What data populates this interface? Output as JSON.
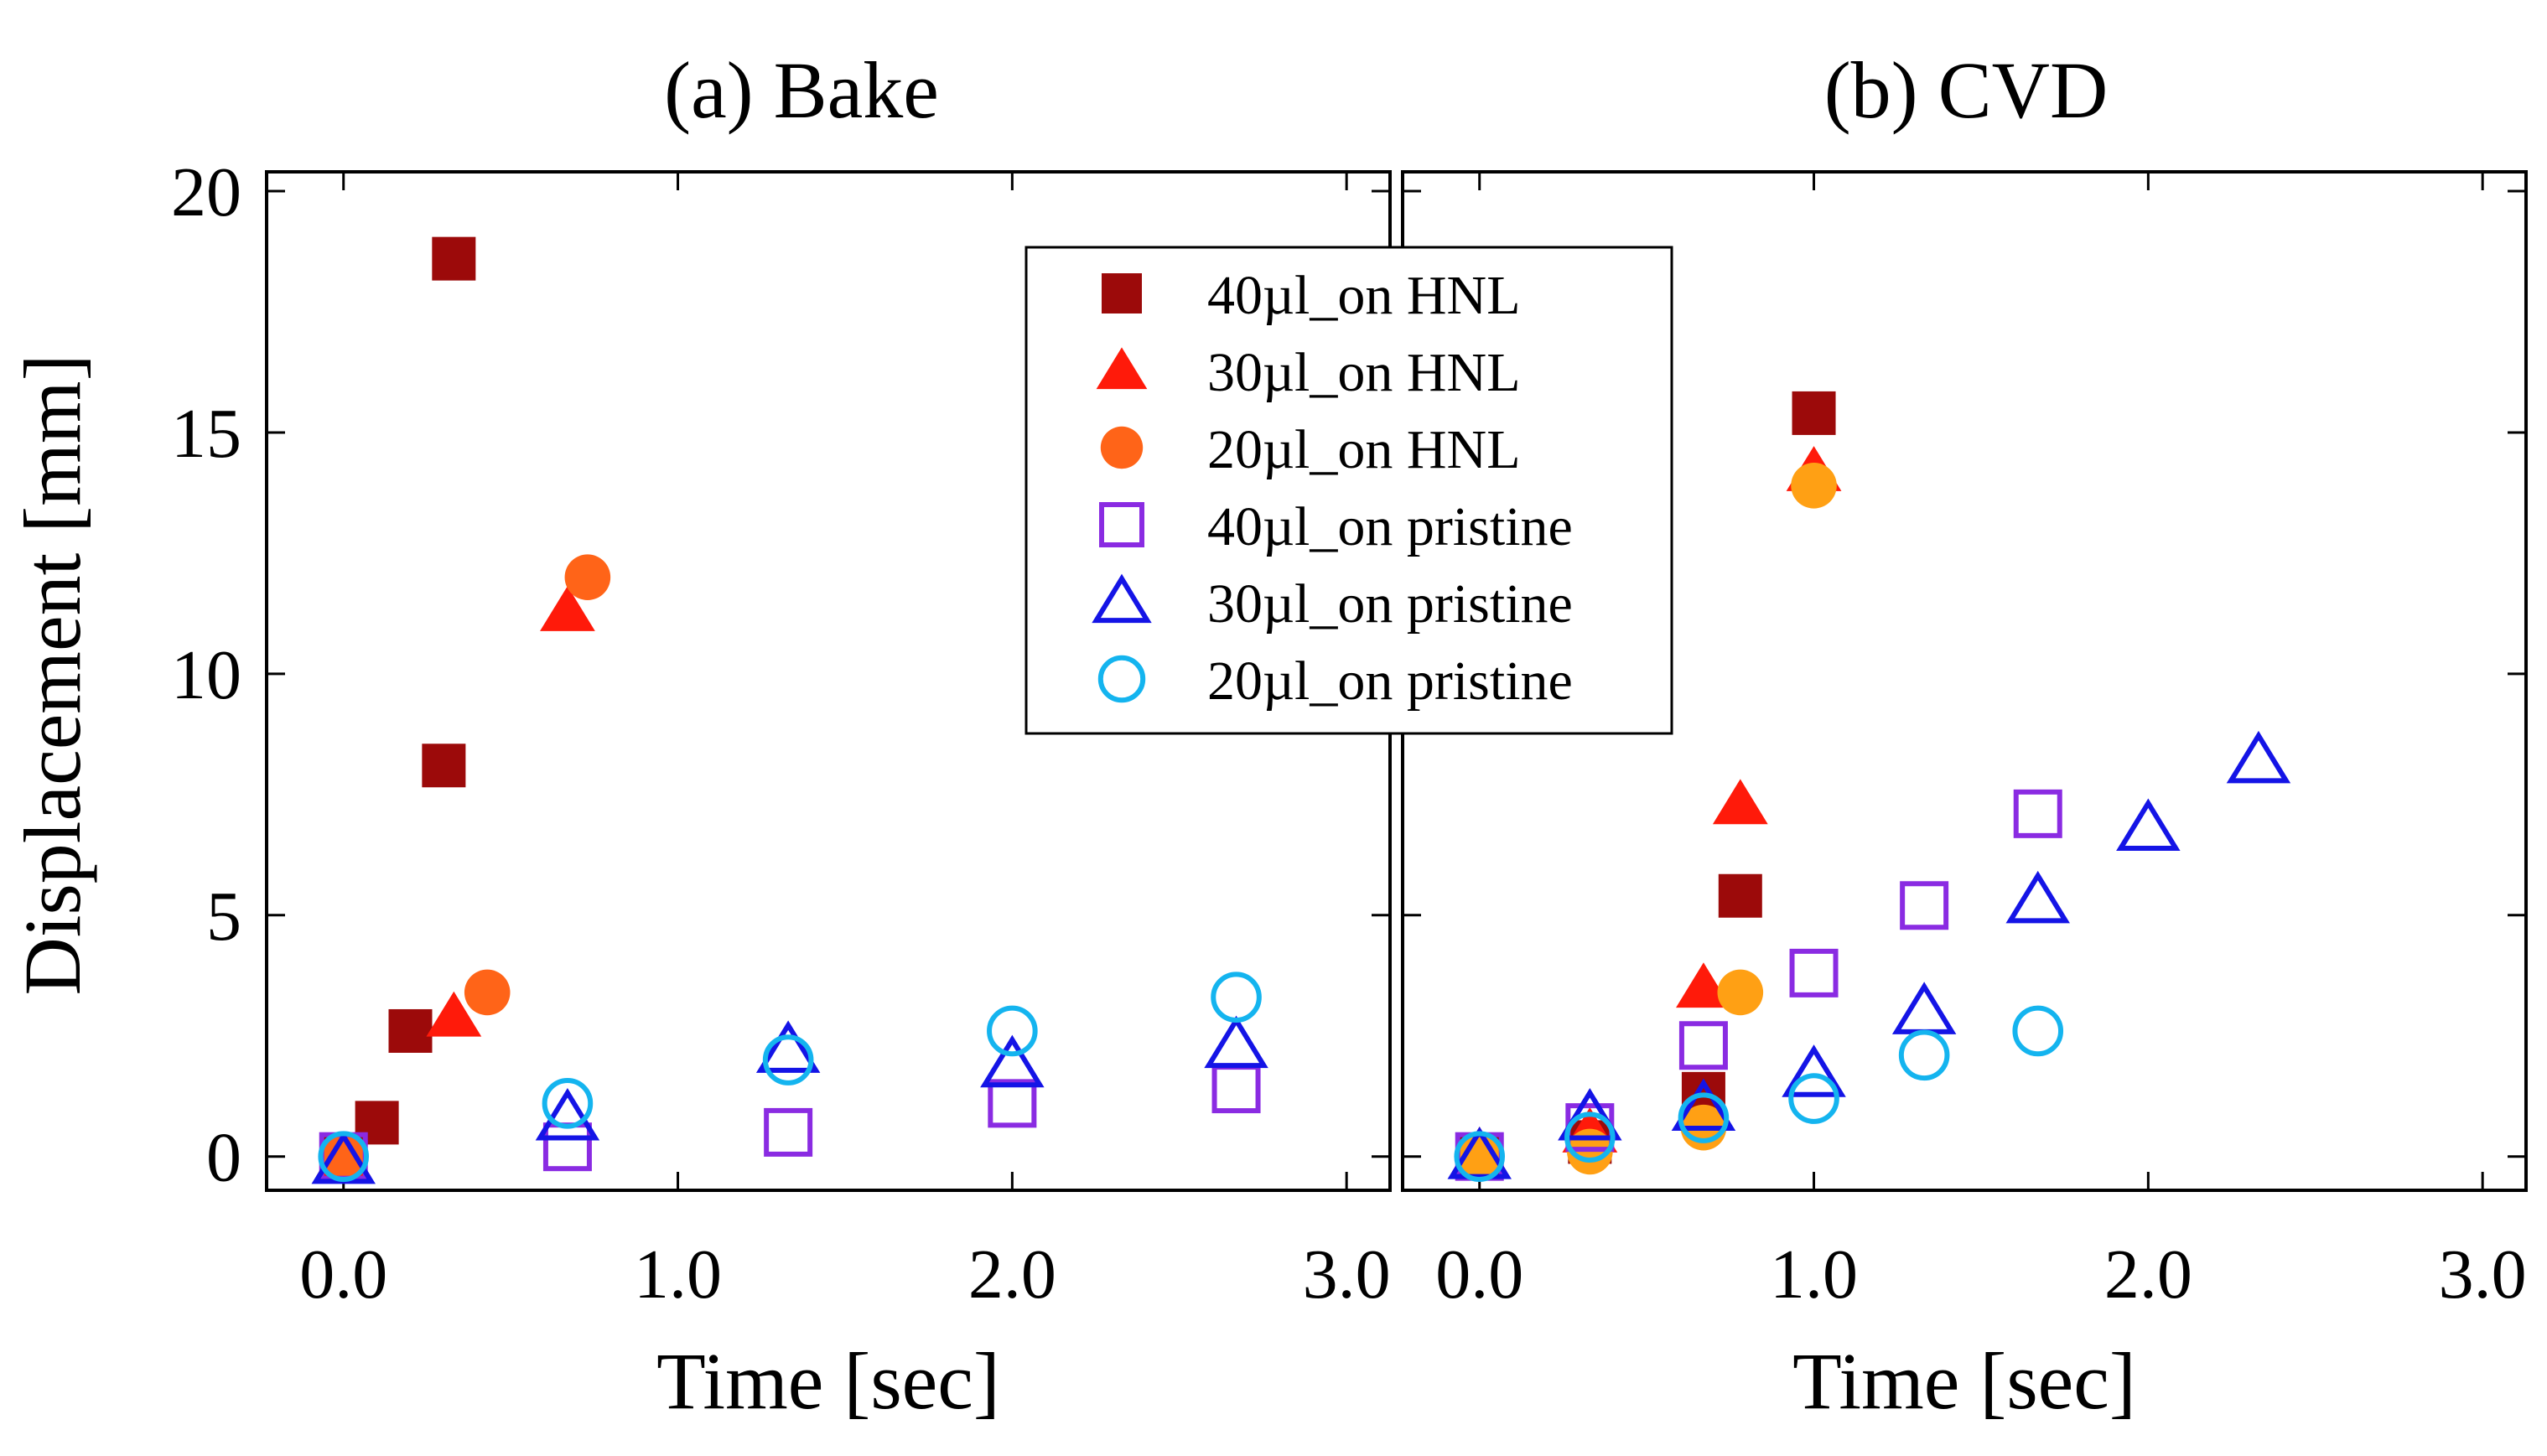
{
  "figure": {
    "ylabel": "Displacement [mm]",
    "xlabel": "Time [sec]"
  },
  "legend": {
    "entries": [
      {
        "label": "40µl_on HNL",
        "marker": "square-filled",
        "color": "#9c0a0a"
      },
      {
        "label": "30µl_on HNL",
        "marker": "triangle-filled",
        "color": "#ff1a0a"
      },
      {
        "label": "20µl_on HNL",
        "marker": "circle-filled",
        "color": "#ff6418"
      },
      {
        "label": "40µl_on pristine",
        "marker": "square-open",
        "color": "#8a2be2"
      },
      {
        "label": "30µl_on pristine",
        "marker": "triangle-open",
        "color": "#1414e6"
      },
      {
        "label": "20µl_on pristine",
        "marker": "circle-open",
        "color": "#14b4ef"
      }
    ]
  },
  "chart_data": [
    {
      "type": "scatter",
      "title": "(a) Bake",
      "xlabel": "Time [sec]",
      "ylabel": "Displacement [mm]",
      "xlim": [
        -0.23,
        3.13
      ],
      "ylim": [
        -0.7,
        20.4
      ],
      "xticks": [
        0,
        1,
        2,
        3
      ],
      "xtick_labels": [
        "0.0",
        "1.0",
        "2.0",
        "3.0"
      ],
      "yticks": [
        0,
        5,
        10,
        15,
        20
      ],
      "ytick_labels": [
        "0",
        "5",
        "10",
        "15",
        "20"
      ],
      "series": [
        {
          "name": "40µl_on HNL",
          "marker": "square-filled",
          "color": "#9c0a0a",
          "points": [
            [
              0.0,
              0.0
            ],
            [
              0.1,
              0.7
            ],
            [
              0.2,
              2.6
            ],
            [
              0.3,
              8.1
            ],
            [
              0.33,
              18.6
            ]
          ]
        },
        {
          "name": "30µl_on HNL",
          "marker": "triangle-filled",
          "color": "#ff1a0a",
          "points": [
            [
              0.0,
              0.0
            ],
            [
              0.33,
              2.9
            ],
            [
              0.67,
              11.3
            ]
          ]
        },
        {
          "name": "20µl_on HNL",
          "marker": "circle-filled",
          "color": "#ff6418",
          "points": [
            [
              0.0,
              0.0
            ],
            [
              0.43,
              3.4
            ],
            [
              0.73,
              12.0
            ]
          ]
        },
        {
          "name": "40µl_on pristine",
          "marker": "square-open",
          "color": "#8a2be2",
          "points": [
            [
              0.0,
              0.0
            ],
            [
              0.67,
              0.2
            ],
            [
              1.33,
              0.5
            ],
            [
              2.0,
              1.1
            ],
            [
              2.67,
              1.4
            ]
          ]
        },
        {
          "name": "30µl_on pristine",
          "marker": "triangle-open",
          "color": "#1414e6",
          "points": [
            [
              0.0,
              -0.1
            ],
            [
              0.67,
              0.8
            ],
            [
              1.33,
              2.2
            ],
            [
              2.0,
              1.9
            ],
            [
              2.67,
              2.3
            ]
          ]
        },
        {
          "name": "20µl_on pristine",
          "marker": "circle-open",
          "color": "#14b4ef",
          "points": [
            [
              0.0,
              0.0
            ],
            [
              0.67,
              1.1
            ],
            [
              1.33,
              2.0
            ],
            [
              2.0,
              2.6
            ],
            [
              2.67,
              3.3
            ]
          ]
        }
      ]
    },
    {
      "type": "scatter",
      "title": "(b) CVD",
      "xlabel": "Time [sec]",
      "ylabel": "",
      "xlim": [
        -0.23,
        3.13
      ],
      "ylim": [
        -0.7,
        20.4
      ],
      "xticks": [
        0,
        1,
        2,
        3
      ],
      "xtick_labels": [
        "0.0",
        "1.0",
        "2.0",
        "3.0"
      ],
      "yticks": [
        0,
        5,
        10,
        15,
        20
      ],
      "ytick_labels": [],
      "series": [
        {
          "name": "40µl_on HNL",
          "marker": "square-filled",
          "color": "#9c0a0a",
          "points": [
            [
              0.0,
              0.0
            ],
            [
              0.33,
              0.3
            ],
            [
              0.67,
              1.3
            ],
            [
              0.78,
              5.4
            ],
            [
              1.0,
              15.4
            ]
          ]
        },
        {
          "name": "30µl_on HNL",
          "marker": "triangle-filled",
          "color": "#ff1a0a",
          "points": [
            [
              0.0,
              0.1
            ],
            [
              0.33,
              0.5
            ],
            [
              0.67,
              3.5
            ],
            [
              0.78,
              7.3
            ],
            [
              1.0,
              14.2
            ]
          ]
        },
        {
          "name": "20µl_on HNL",
          "marker": "circle-filled",
          "color": "#ffa014",
          "points": [
            [
              0.0,
              0.0
            ],
            [
              0.33,
              0.1
            ],
            [
              0.67,
              0.6
            ],
            [
              0.78,
              3.4
            ],
            [
              1.0,
              13.9
            ]
          ]
        },
        {
          "name": "40µl_on pristine",
          "marker": "square-open",
          "color": "#8a2be2",
          "points": [
            [
              0.0,
              0.0
            ],
            [
              0.33,
              0.6
            ],
            [
              0.67,
              2.3
            ],
            [
              1.0,
              3.8
            ],
            [
              1.33,
              5.2
            ],
            [
              1.67,
              7.1
            ]
          ]
        },
        {
          "name": "30µl_on pristine",
          "marker": "triangle-open",
          "color": "#1414e6",
          "points": [
            [
              0.0,
              0.0
            ],
            [
              0.33,
              0.8
            ],
            [
              0.67,
              1.0
            ],
            [
              1.0,
              1.7
            ],
            [
              1.33,
              3.0
            ],
            [
              1.67,
              5.3
            ],
            [
              2.0,
              6.8
            ],
            [
              2.33,
              8.2
            ]
          ]
        },
        {
          "name": "20µl_on pristine",
          "marker": "circle-open",
          "color": "#14b4ef",
          "points": [
            [
              0.0,
              0.0
            ],
            [
              0.33,
              0.4
            ],
            [
              0.67,
              0.8
            ],
            [
              1.0,
              1.2
            ],
            [
              1.33,
              2.1
            ],
            [
              1.67,
              2.6
            ]
          ]
        }
      ]
    }
  ]
}
